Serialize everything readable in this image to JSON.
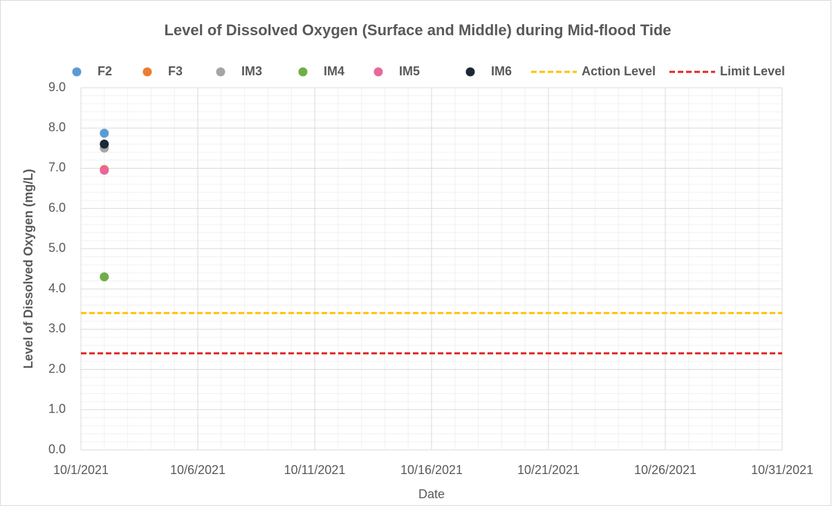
{
  "chart_data": {
    "type": "scatter",
    "title": "Level of Dissolved Oxygen (Surface and Middle) during Mid-flood Tide",
    "x_label": "Date",
    "y_label": "Level of Dissolved Oxygen (mg/L)",
    "xlim": [
      "10/1/2021",
      "10/31/2021"
    ],
    "xticks": [
      "10/1/2021",
      "10/6/2021",
      "10/11/2021",
      "10/16/2021",
      "10/21/2021",
      "10/26/2021",
      "10/31/2021"
    ],
    "ylim": [
      0,
      9
    ],
    "yticks": [
      {
        "value": 0,
        "label": "0.0"
      },
      {
        "value": 1,
        "label": "1.0"
      },
      {
        "value": 2,
        "label": "2.0"
      },
      {
        "value": 3,
        "label": "3.0"
      },
      {
        "value": 4,
        "label": "4.0"
      },
      {
        "value": 5,
        "label": "5.0"
      },
      {
        "value": 6,
        "label": "6.0"
      },
      {
        "value": 7,
        "label": "7.0"
      },
      {
        "value": 8,
        "label": "8.0"
      },
      {
        "value": 9,
        "label": "9.0"
      }
    ],
    "grid": true,
    "legend": "top",
    "series": [
      {
        "name": "F2",
        "color": "#5b9bd5",
        "style": "marker",
        "x": [
          "10/2/2021"
        ],
        "values": [
          7.87
        ]
      },
      {
        "name": "F3",
        "color": "#ed7d31",
        "style": "marker",
        "x": [
          "10/2/2021"
        ],
        "values": [
          6.97
        ]
      },
      {
        "name": "IM3",
        "color": "#a5a5a5",
        "style": "marker",
        "x": [
          "10/2/2021"
        ],
        "values": [
          7.5
        ]
      },
      {
        "name": "IM4",
        "color": "#70ad47",
        "style": "marker",
        "x": [
          "10/2/2021"
        ],
        "values": [
          4.3
        ]
      },
      {
        "name": "IM5",
        "color": "#e9679a",
        "style": "marker",
        "x": [
          "10/2/2021"
        ],
        "values": [
          6.95
        ]
      },
      {
        "name": "IM6",
        "color": "#1c2836",
        "style": "marker",
        "x": [
          "10/2/2021"
        ],
        "values": [
          7.6
        ]
      },
      {
        "name": "Action Level",
        "color": "#ffc000",
        "style": "dashed",
        "x": [
          "10/1/2021",
          "10/31/2021"
        ],
        "values": [
          3.4,
          3.4
        ]
      },
      {
        "name": "Limit Level",
        "color": "#e02424",
        "style": "dashed",
        "x": [
          "10/1/2021",
          "10/31/2021"
        ],
        "values": [
          2.4,
          2.4
        ]
      }
    ]
  }
}
